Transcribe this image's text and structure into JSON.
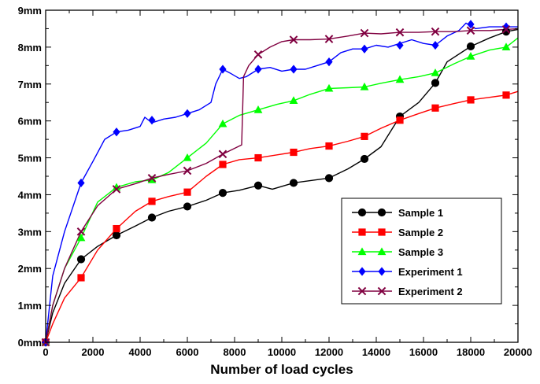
{
  "chart_data": {
    "type": "line",
    "title": "",
    "xlabel": "Number of load cycles",
    "ylabel": "",
    "xlim": [
      0,
      20000
    ],
    "ylim": [
      0,
      9
    ],
    "grid": false,
    "legend_position": "bottom-right",
    "x_ticks": [
      0,
      2000,
      4000,
      6000,
      8000,
      10000,
      12000,
      14000,
      16000,
      18000,
      20000
    ],
    "x_tick_labels": [
      "0",
      "2000",
      "4000",
      "6000",
      "8000",
      "10000",
      "12000",
      "14000",
      "16000",
      "18000",
      "20000"
    ],
    "y_ticks": [
      0,
      1,
      2,
      3,
      4,
      5,
      6,
      7,
      8,
      9
    ],
    "y_tick_labels": [
      "0mm",
      "1mm",
      "2mm",
      "3mm",
      "4mm",
      "5mm",
      "6mm",
      "7mm",
      "8mm",
      "9mm"
    ],
    "series": [
      {
        "name": "Sample 1",
        "color": "#000000",
        "marker": "circle",
        "line": [
          [
            0,
            0
          ],
          [
            300,
            0.8
          ],
          [
            800,
            1.6
          ],
          [
            1500,
            2.25
          ],
          [
            2200,
            2.6
          ],
          [
            3000,
            2.9
          ],
          [
            3800,
            3.15
          ],
          [
            4500,
            3.38
          ],
          [
            5200,
            3.55
          ],
          [
            6000,
            3.68
          ],
          [
            6800,
            3.85
          ],
          [
            7500,
            4.05
          ],
          [
            8200,
            4.12
          ],
          [
            9000,
            4.25
          ],
          [
            9600,
            4.15
          ],
          [
            10500,
            4.32
          ],
          [
            11200,
            4.38
          ],
          [
            12000,
            4.45
          ],
          [
            12800,
            4.7
          ],
          [
            13500,
            4.97
          ],
          [
            14200,
            5.3
          ],
          [
            15000,
            6.12
          ],
          [
            15800,
            6.5
          ],
          [
            16500,
            7.03
          ],
          [
            17000,
            7.6
          ],
          [
            18000,
            8.02
          ],
          [
            18800,
            8.25
          ],
          [
            19500,
            8.42
          ],
          [
            20000,
            8.48
          ]
        ],
        "markers": [
          [
            0,
            0
          ],
          [
            1500,
            2.25
          ],
          [
            3000,
            2.9
          ],
          [
            4500,
            3.38
          ],
          [
            6000,
            3.68
          ],
          [
            7500,
            4.05
          ],
          [
            9000,
            4.25
          ],
          [
            10500,
            4.32
          ],
          [
            12000,
            4.45
          ],
          [
            13500,
            4.97
          ],
          [
            15000,
            6.12
          ],
          [
            16500,
            7.03
          ],
          [
            18000,
            8.02
          ],
          [
            19500,
            8.42
          ]
        ]
      },
      {
        "name": "Sample 2",
        "color": "#ff0000",
        "marker": "square",
        "line": [
          [
            0,
            0
          ],
          [
            300,
            0.5
          ],
          [
            800,
            1.2
          ],
          [
            1500,
            1.75
          ],
          [
            2200,
            2.5
          ],
          [
            3000,
            3.08
          ],
          [
            3800,
            3.55
          ],
          [
            4500,
            3.82
          ],
          [
            5200,
            3.95
          ],
          [
            6000,
            4.07
          ],
          [
            6800,
            4.5
          ],
          [
            7500,
            4.82
          ],
          [
            8200,
            4.95
          ],
          [
            9000,
            5.0
          ],
          [
            9800,
            5.08
          ],
          [
            10500,
            5.15
          ],
          [
            11200,
            5.25
          ],
          [
            12000,
            5.32
          ],
          [
            12800,
            5.45
          ],
          [
            13500,
            5.58
          ],
          [
            14200,
            5.8
          ],
          [
            15000,
            6.02
          ],
          [
            15800,
            6.2
          ],
          [
            16500,
            6.35
          ],
          [
            17300,
            6.47
          ],
          [
            18000,
            6.57
          ],
          [
            18800,
            6.64
          ],
          [
            19500,
            6.7
          ],
          [
            20000,
            6.8
          ]
        ],
        "markers": [
          [
            0,
            0
          ],
          [
            1500,
            1.75
          ],
          [
            3000,
            3.08
          ],
          [
            4500,
            3.82
          ],
          [
            6000,
            4.07
          ],
          [
            7500,
            4.82
          ],
          [
            9000,
            5.0
          ],
          [
            10500,
            5.15
          ],
          [
            12000,
            5.32
          ],
          [
            13500,
            5.58
          ],
          [
            15000,
            6.02
          ],
          [
            16500,
            6.35
          ],
          [
            18000,
            6.57
          ],
          [
            19500,
            6.7
          ]
        ]
      },
      {
        "name": "Sample 3",
        "color": "#00ff00",
        "marker": "triangle",
        "line": [
          [
            0,
            0
          ],
          [
            300,
            1.0
          ],
          [
            800,
            2.0
          ],
          [
            1500,
            2.83
          ],
          [
            2200,
            3.8
          ],
          [
            3000,
            4.2
          ],
          [
            3800,
            4.35
          ],
          [
            4500,
            4.4
          ],
          [
            5200,
            4.6
          ],
          [
            6000,
            5.0
          ],
          [
            6800,
            5.4
          ],
          [
            7500,
            5.92
          ],
          [
            8200,
            6.15
          ],
          [
            9000,
            6.3
          ],
          [
            9800,
            6.45
          ],
          [
            10500,
            6.55
          ],
          [
            11200,
            6.72
          ],
          [
            12000,
            6.88
          ],
          [
            12800,
            6.9
          ],
          [
            13500,
            6.92
          ],
          [
            14200,
            7.02
          ],
          [
            15000,
            7.12
          ],
          [
            15800,
            7.2
          ],
          [
            16500,
            7.3
          ],
          [
            17300,
            7.55
          ],
          [
            18000,
            7.75
          ],
          [
            18800,
            7.92
          ],
          [
            19500,
            8.0
          ],
          [
            20000,
            8.25
          ]
        ],
        "markers": [
          [
            0,
            0
          ],
          [
            1500,
            2.83
          ],
          [
            3000,
            4.2
          ],
          [
            4500,
            4.4
          ],
          [
            6000,
            5.0
          ],
          [
            7500,
            5.92
          ],
          [
            9000,
            6.3
          ],
          [
            10500,
            6.55
          ],
          [
            12000,
            6.88
          ],
          [
            13500,
            6.92
          ],
          [
            15000,
            7.12
          ],
          [
            16500,
            7.3
          ],
          [
            18000,
            7.75
          ],
          [
            19500,
            8.0
          ]
        ]
      },
      {
        "name": "Experiment 1",
        "color": "#0000ff",
        "marker": "diamond",
        "line": [
          [
            0,
            0
          ],
          [
            300,
            1.8
          ],
          [
            800,
            3.0
          ],
          [
            1500,
            4.32
          ],
          [
            2000,
            4.9
          ],
          [
            2500,
            5.5
          ],
          [
            3000,
            5.7
          ],
          [
            3500,
            5.75
          ],
          [
            4000,
            5.85
          ],
          [
            4200,
            6.1
          ],
          [
            4500,
            5.95
          ],
          [
            5000,
            6.05
          ],
          [
            5500,
            6.1
          ],
          [
            6000,
            6.2
          ],
          [
            6500,
            6.3
          ],
          [
            7000,
            6.5
          ],
          [
            7200,
            7.0
          ],
          [
            7500,
            7.4
          ],
          [
            7800,
            7.3
          ],
          [
            8200,
            7.15
          ],
          [
            8500,
            7.2
          ],
          [
            9000,
            7.4
          ],
          [
            9500,
            7.45
          ],
          [
            10000,
            7.35
          ],
          [
            10500,
            7.4
          ],
          [
            11000,
            7.4
          ],
          [
            11500,
            7.5
          ],
          [
            12000,
            7.6
          ],
          [
            12500,
            7.85
          ],
          [
            13000,
            7.95
          ],
          [
            13500,
            7.95
          ],
          [
            14000,
            8.05
          ],
          [
            14500,
            8.0
          ],
          [
            15000,
            8.1
          ],
          [
            15500,
            8.2
          ],
          [
            16000,
            8.1
          ],
          [
            16500,
            8.05
          ],
          [
            17000,
            8.3
          ],
          [
            17500,
            8.45
          ],
          [
            17800,
            8.65
          ],
          [
            18200,
            8.5
          ],
          [
            18800,
            8.55
          ],
          [
            19500,
            8.55
          ],
          [
            20000,
            8.55
          ]
        ],
        "markers": [
          [
            0,
            0
          ],
          [
            1500,
            4.32
          ],
          [
            3000,
            5.7
          ],
          [
            4500,
            6.02
          ],
          [
            6000,
            6.2
          ],
          [
            7500,
            7.4
          ],
          [
            9000,
            7.4
          ],
          [
            10500,
            7.4
          ],
          [
            12000,
            7.6
          ],
          [
            13500,
            7.95
          ],
          [
            15000,
            8.05
          ],
          [
            16500,
            8.05
          ],
          [
            18000,
            8.62
          ],
          [
            19500,
            8.55
          ]
        ]
      },
      {
        "name": "Experiment 2",
        "color": "#800040",
        "marker": "x",
        "line": [
          [
            0,
            0
          ],
          [
            300,
            1.0
          ],
          [
            800,
            2.0
          ],
          [
            1500,
            3.0
          ],
          [
            2200,
            3.7
          ],
          [
            3000,
            4.15
          ],
          [
            3800,
            4.3
          ],
          [
            4500,
            4.45
          ],
          [
            5200,
            4.55
          ],
          [
            6000,
            4.65
          ],
          [
            6800,
            4.85
          ],
          [
            7500,
            5.1
          ],
          [
            8300,
            5.35
          ],
          [
            8380,
            7.2
          ],
          [
            8600,
            7.5
          ],
          [
            9000,
            7.8
          ],
          [
            9500,
            8.0
          ],
          [
            10000,
            8.15
          ],
          [
            10500,
            8.2
          ],
          [
            11200,
            8.2
          ],
          [
            12000,
            8.22
          ],
          [
            12800,
            8.3
          ],
          [
            13500,
            8.38
          ],
          [
            14200,
            8.36
          ],
          [
            15000,
            8.4
          ],
          [
            15800,
            8.4
          ],
          [
            16500,
            8.42
          ],
          [
            17300,
            8.42
          ],
          [
            18000,
            8.45
          ],
          [
            18800,
            8.45
          ],
          [
            19500,
            8.48
          ],
          [
            20000,
            8.5
          ]
        ],
        "markers": [
          [
            0,
            0
          ],
          [
            1500,
            3.0
          ],
          [
            3000,
            4.15
          ],
          [
            4500,
            4.45
          ],
          [
            6000,
            4.65
          ],
          [
            7500,
            5.1
          ],
          [
            9000,
            7.8
          ],
          [
            10500,
            8.2
          ],
          [
            12000,
            8.22
          ],
          [
            13500,
            8.38
          ],
          [
            15000,
            8.4
          ],
          [
            16500,
            8.42
          ],
          [
            18000,
            8.45
          ],
          [
            19500,
            8.48
          ]
        ]
      }
    ]
  }
}
